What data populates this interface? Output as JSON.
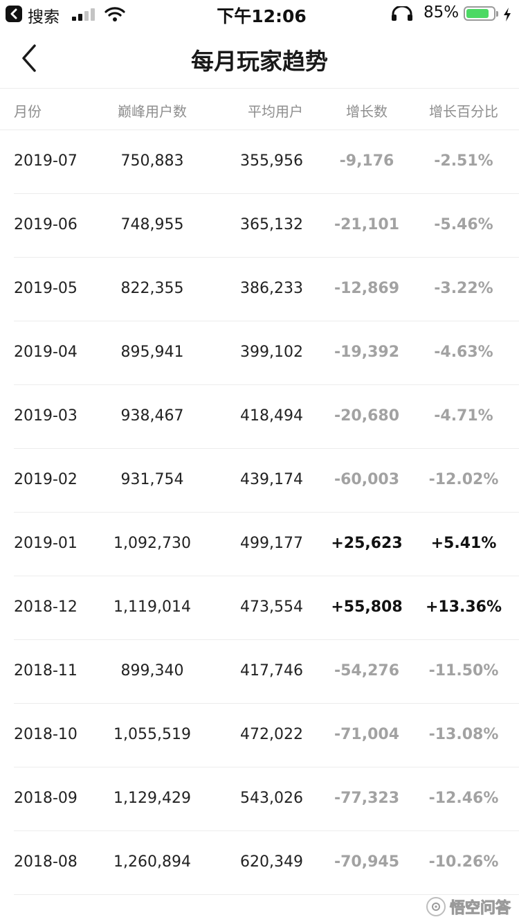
{
  "status_bar": {
    "back_label": "搜索",
    "time": "下午12:06",
    "battery_percent": "85%",
    "battery_level": 0.85,
    "signal_bars_active": 2,
    "signal_bars_total": 4
  },
  "colors": {
    "negative": "#a2a2a2",
    "positive": "#111111",
    "battery_fill": "#4cd964",
    "divider": "#ececec"
  },
  "nav": {
    "title": "每月玩家趋势",
    "back_icon": "chevron-left-icon"
  },
  "table": {
    "headers": {
      "month": "月份",
      "peak_users": "巅峰用户数",
      "avg_users": "平均用户",
      "growth": "增长数",
      "growth_pct": "增长百分比"
    },
    "rows": [
      {
        "month": "2019-07",
        "peak": "750,883",
        "avg": "355,956",
        "growth": "-9,176",
        "pct": "-2.51%",
        "trend": "neg"
      },
      {
        "month": "2019-06",
        "peak": "748,955",
        "avg": "365,132",
        "growth": "-21,101",
        "pct": "-5.46%",
        "trend": "neg"
      },
      {
        "month": "2019-05",
        "peak": "822,355",
        "avg": "386,233",
        "growth": "-12,869",
        "pct": "-3.22%",
        "trend": "neg"
      },
      {
        "month": "2019-04",
        "peak": "895,941",
        "avg": "399,102",
        "growth": "-19,392",
        "pct": "-4.63%",
        "trend": "neg"
      },
      {
        "month": "2019-03",
        "peak": "938,467",
        "avg": "418,494",
        "growth": "-20,680",
        "pct": "-4.71%",
        "trend": "neg"
      },
      {
        "month": "2019-02",
        "peak": "931,754",
        "avg": "439,174",
        "growth": "-60,003",
        "pct": "-12.02%",
        "trend": "neg"
      },
      {
        "month": "2019-01",
        "peak": "1,092,730",
        "avg": "499,177",
        "growth": "+25,623",
        "pct": "+5.41%",
        "trend": "pos"
      },
      {
        "month": "2018-12",
        "peak": "1,119,014",
        "avg": "473,554",
        "growth": "+55,808",
        "pct": "+13.36%",
        "trend": "pos"
      },
      {
        "month": "2018-11",
        "peak": "899,340",
        "avg": "417,746",
        "growth": "-54,276",
        "pct": "-11.50%",
        "trend": "neg"
      },
      {
        "month": "2018-10",
        "peak": "1,055,519",
        "avg": "472,022",
        "growth": "-71,004",
        "pct": "-13.08%",
        "trend": "neg"
      },
      {
        "month": "2018-09",
        "peak": "1,129,429",
        "avg": "543,026",
        "growth": "-77,323",
        "pct": "-12.46%",
        "trend": "neg"
      },
      {
        "month": "2018-08",
        "peak": "1,260,894",
        "avg": "620,349",
        "growth": "-70,945",
        "pct": "-10.26%",
        "trend": "neg"
      }
    ]
  },
  "watermark": {
    "text": "悟空问答",
    "icon": "wukong-logo-icon"
  }
}
